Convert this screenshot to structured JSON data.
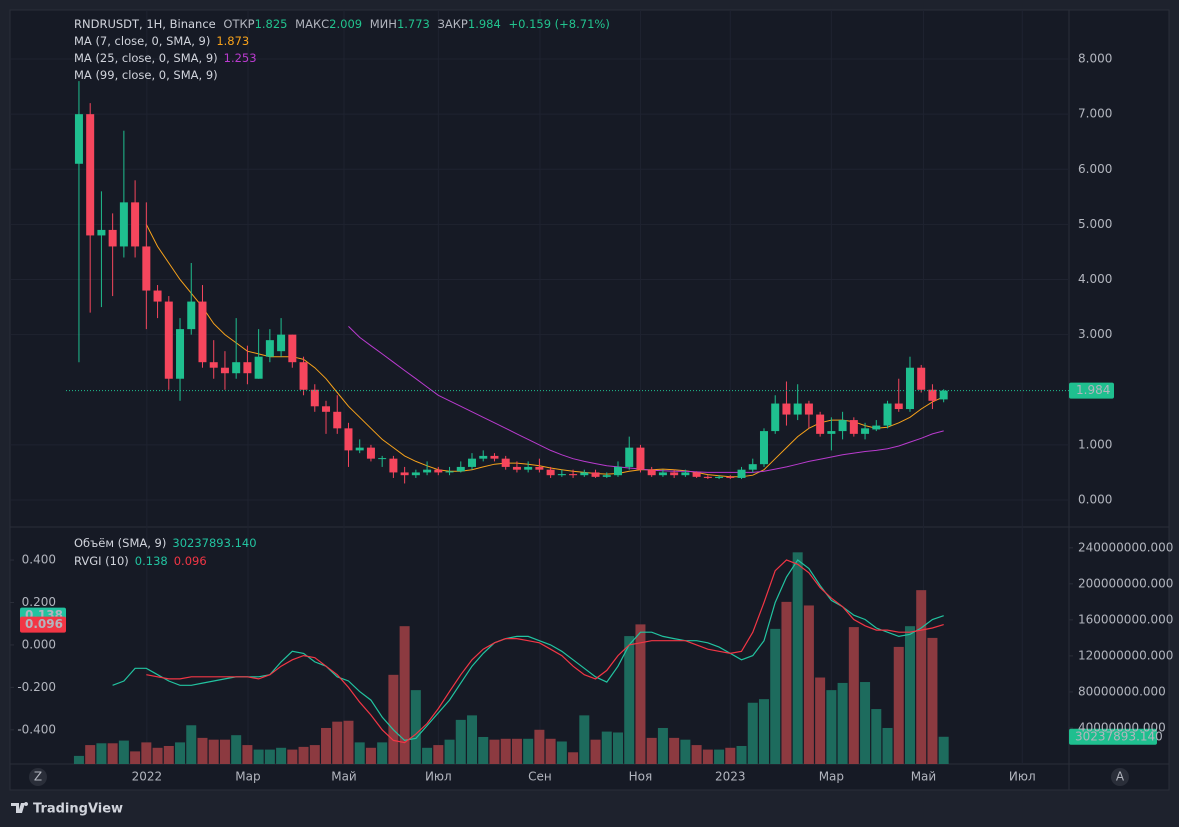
{
  "chart_data": {
    "type": "candlestick",
    "symbol": "RNDRUSDT, 1H, Binance",
    "ohlc_labels": {
      "open": "ОТКР",
      "high": "МАКС",
      "low": "МИН",
      "close": "ЗАКР"
    },
    "change": "+0.159 (+8.71%)",
    "up_color": "#1fbf8f",
    "down_color": "#f6465d",
    "open": [
      6.1,
      7.0,
      4.8,
      4.9,
      4.6,
      5.4,
      4.6,
      3.8,
      3.6,
      2.2,
      3.1,
      3.6,
      2.5,
      2.4,
      2.3,
      2.5,
      2.2,
      2.6,
      2.7,
      3.0,
      2.5,
      2.0,
      1.7,
      1.6,
      1.3,
      0.9,
      0.95,
      0.75,
      0.75,
      0.5,
      0.45,
      0.5,
      0.55,
      0.5,
      0.52,
      0.6,
      0.75,
      0.8,
      0.75,
      0.6,
      0.55,
      0.6,
      0.55,
      0.45,
      0.47,
      0.45,
      0.5,
      0.42,
      0.45,
      0.6,
      0.95,
      0.55,
      0.45,
      0.5,
      0.45,
      0.5,
      0.42,
      0.4,
      0.42,
      0.4,
      0.55,
      0.65,
      1.25,
      1.75,
      1.55,
      1.75,
      1.55,
      1.2,
      1.25,
      1.45,
      1.2,
      1.28,
      1.35,
      1.75,
      1.65,
      2.4,
      2.0,
      1.825
    ],
    "high": [
      7.6,
      7.2,
      5.6,
      5.2,
      6.7,
      5.8,
      5.4,
      3.9,
      3.7,
      3.3,
      4.3,
      3.9,
      2.9,
      2.7,
      3.3,
      2.8,
      3.1,
      3.1,
      3.3,
      3.0,
      2.6,
      2.1,
      1.8,
      1.9,
      1.4,
      1.1,
      1.0,
      0.8,
      0.8,
      0.6,
      0.55,
      0.7,
      0.6,
      0.6,
      0.7,
      0.85,
      0.9,
      0.85,
      0.8,
      0.7,
      0.7,
      0.75,
      0.6,
      0.55,
      0.55,
      0.55,
      0.55,
      0.5,
      0.7,
      1.15,
      1.0,
      0.6,
      0.55,
      0.55,
      0.55,
      0.52,
      0.45,
      0.45,
      0.45,
      0.6,
      0.75,
      1.3,
      1.9,
      2.15,
      2.1,
      1.8,
      1.6,
      1.5,
      1.6,
      1.5,
      1.4,
      1.45,
      1.8,
      2.2,
      2.6,
      2.45,
      2.1,
      2.009
    ],
    "low": [
      2.5,
      3.4,
      3.5,
      3.7,
      4.4,
      4.4,
      3.1,
      3.3,
      2.0,
      1.8,
      3.0,
      2.4,
      2.2,
      2.0,
      2.2,
      2.1,
      2.2,
      2.5,
      2.6,
      2.4,
      1.9,
      1.6,
      1.2,
      1.2,
      0.6,
      0.85,
      0.7,
      0.6,
      0.4,
      0.3,
      0.4,
      0.45,
      0.45,
      0.45,
      0.5,
      0.55,
      0.7,
      0.7,
      0.55,
      0.5,
      0.5,
      0.5,
      0.4,
      0.42,
      0.4,
      0.42,
      0.4,
      0.4,
      0.42,
      0.55,
      0.5,
      0.42,
      0.42,
      0.4,
      0.42,
      0.4,
      0.38,
      0.38,
      0.38,
      0.38,
      0.5,
      0.6,
      1.2,
      1.35,
      1.45,
      1.3,
      1.15,
      0.9,
      1.1,
      1.15,
      1.1,
      1.25,
      1.3,
      1.6,
      1.6,
      1.95,
      1.65,
      1.773
    ],
    "close": [
      7.0,
      4.8,
      4.9,
      4.6,
      5.4,
      4.6,
      3.8,
      3.6,
      2.2,
      3.1,
      3.6,
      2.5,
      2.4,
      2.3,
      2.5,
      2.3,
      2.6,
      2.9,
      3.0,
      2.5,
      2.0,
      1.7,
      1.6,
      1.3,
      0.9,
      0.95,
      0.75,
      0.76,
      0.5,
      0.45,
      0.5,
      0.55,
      0.5,
      0.52,
      0.6,
      0.75,
      0.8,
      0.75,
      0.6,
      0.55,
      0.6,
      0.55,
      0.45,
      0.47,
      0.45,
      0.5,
      0.42,
      0.45,
      0.6,
      0.95,
      0.55,
      0.45,
      0.5,
      0.45,
      0.5,
      0.42,
      0.4,
      0.42,
      0.4,
      0.55,
      0.65,
      1.25,
      1.75,
      1.55,
      1.75,
      1.55,
      1.2,
      1.25,
      1.45,
      1.2,
      1.3,
      1.35,
      1.75,
      1.65,
      2.4,
      2.0,
      1.8,
      1.984
    ],
    "series": [
      {
        "name": "MA (7, close, 0, SMA, 9)",
        "color": "#f7a21b",
        "values": [
          null,
          null,
          null,
          null,
          null,
          null,
          5.0,
          4.6,
          4.3,
          4.0,
          3.75,
          3.5,
          3.2,
          3.0,
          2.85,
          2.7,
          2.65,
          2.6,
          2.6,
          2.6,
          2.55,
          2.4,
          2.2,
          1.95,
          1.7,
          1.5,
          1.3,
          1.1,
          0.95,
          0.8,
          0.7,
          0.62,
          0.55,
          0.52,
          0.52,
          0.55,
          0.6,
          0.65,
          0.67,
          0.67,
          0.65,
          0.62,
          0.58,
          0.55,
          0.52,
          0.5,
          0.48,
          0.47,
          0.48,
          0.52,
          0.55,
          0.55,
          0.56,
          0.55,
          0.53,
          0.5,
          0.46,
          0.44,
          0.42,
          0.42,
          0.45,
          0.55,
          0.75,
          0.95,
          1.15,
          1.3,
          1.4,
          1.45,
          1.45,
          1.42,
          1.35,
          1.3,
          1.32,
          1.4,
          1.5,
          1.65,
          1.78,
          1.873
        ]
      },
      {
        "name": "MA (25, close, 0, SMA, 9)",
        "color": "#b93bce",
        "values": [
          null,
          null,
          null,
          null,
          null,
          null,
          null,
          null,
          null,
          null,
          null,
          null,
          null,
          null,
          null,
          null,
          null,
          null,
          null,
          null,
          null,
          null,
          null,
          null,
          3.15,
          2.95,
          2.8,
          2.65,
          2.5,
          2.35,
          2.2,
          2.05,
          1.9,
          1.8,
          1.7,
          1.6,
          1.5,
          1.4,
          1.3,
          1.2,
          1.1,
          1.0,
          0.9,
          0.82,
          0.75,
          0.7,
          0.66,
          0.62,
          0.6,
          0.58,
          0.56,
          0.54,
          0.53,
          0.52,
          0.52,
          0.51,
          0.5,
          0.5,
          0.5,
          0.5,
          0.5,
          0.52,
          0.56,
          0.6,
          0.65,
          0.7,
          0.74,
          0.78,
          0.82,
          0.85,
          0.88,
          0.9,
          0.93,
          0.98,
          1.05,
          1.12,
          1.2,
          1.253
        ]
      },
      {
        "name": "MA (99, close, 0, SMA, 9)"
      }
    ],
    "xlim": [
      -6.14,
      88.16
    ],
    "xticks": [
      {
        "value": 6.05,
        "label": "2022"
      },
      {
        "value": 15.05,
        "label": "Мар"
      },
      {
        "value": 23.6,
        "label": "Май"
      },
      {
        "value": 32.0,
        "label": "Июл"
      },
      {
        "value": 41.05,
        "label": "Сен"
      },
      {
        "value": 50.0,
        "label": "Ноя"
      },
      {
        "value": 58.0,
        "label": "2023"
      },
      {
        "value": 67.0,
        "label": "Мар"
      },
      {
        "value": 75.2,
        "label": "Май"
      },
      {
        "value": 84.0,
        "label": "Июл"
      }
    ],
    "ylim": [
      -0.49,
      8.89
    ],
    "yticks": [
      {
        "value": 0,
        "label": "0.000"
      },
      {
        "value": 1,
        "label": "1.000"
      },
      {
        "value": 3,
        "label": "3.000"
      },
      {
        "value": 4,
        "label": "4.000"
      },
      {
        "value": 5,
        "label": "5.000"
      },
      {
        "value": 6,
        "label": "6.000"
      },
      {
        "value": 7,
        "label": "7.000"
      },
      {
        "value": 8,
        "label": "8.000"
      }
    ],
    "grid": true,
    "volume": {
      "name": "Объём (SMA, 9)",
      "last_label": "30237893.140",
      "up_color": "#1d6b5d",
      "down_color": "#8c3a40",
      "values": [
        9000000,
        21000000,
        23000000,
        23000000,
        26000000,
        14000000,
        24000000,
        18000000,
        20000000,
        24000000,
        43000000,
        29000000,
        27000000,
        27000000,
        32000000,
        21000000,
        16000000,
        16000000,
        18000000,
        16000000,
        19000000,
        21000000,
        40000000,
        47000000,
        48000000,
        24000000,
        18000000,
        24000000,
        99000000,
        153000000,
        82000000,
        18000000,
        21000000,
        27000000,
        49000000,
        54000000,
        30000000,
        27000000,
        28000000,
        28000000,
        28000000,
        38000000,
        28000000,
        25000000,
        13000000,
        54000000,
        27000000,
        36000000,
        35000000,
        142000000,
        155000000,
        29000000,
        40000000,
        29000000,
        27000000,
        21000000,
        16000000,
        16000000,
        18000000,
        20000000,
        68000000,
        72000000,
        150000000,
        180000000,
        235000000,
        176000000,
        96000000,
        82000000,
        90000000,
        152000000,
        91000000,
        61000000,
        40000000,
        130000000,
        153000000,
        193000000,
        140000000,
        30237893.14
      ],
      "ylim": [
        0,
        262000000
      ],
      "yticks": [
        {
          "value": 40000000,
          "label": "40000000.000"
        },
        {
          "value": 80000000,
          "label": "80000000.000"
        },
        {
          "value": 120000000,
          "label": "120000000.000"
        },
        {
          "value": 160000000,
          "label": "160000000.000"
        },
        {
          "value": 200000000,
          "label": "200000000.000"
        },
        {
          "value": 240000000,
          "label": "240000000.000"
        }
      ]
    },
    "rvgi": {
      "name": "RVGI (10)",
      "ylim": [
        -0.561,
        0.551
      ],
      "yticks": [
        {
          "value": -0.4,
          "label": "-0.400"
        },
        {
          "value": -0.2,
          "label": "-0.200"
        },
        {
          "value": 0,
          "label": "0.000"
        },
        {
          "value": 0.2,
          "label": "0.200"
        },
        {
          "value": 0.4,
          "label": "0.400"
        }
      ],
      "series": [
        {
          "color": "#22c3a0",
          "values": [
            null,
            null,
            null,
            -0.19,
            -0.17,
            -0.11,
            -0.11,
            -0.14,
            -0.17,
            -0.19,
            -0.19,
            -0.18,
            -0.17,
            -0.16,
            -0.15,
            -0.15,
            -0.15,
            -0.14,
            -0.08,
            -0.03,
            -0.04,
            -0.08,
            -0.1,
            -0.15,
            -0.17,
            -0.22,
            -0.26,
            -0.34,
            -0.4,
            -0.45,
            -0.44,
            -0.38,
            -0.32,
            -0.26,
            -0.18,
            -0.1,
            -0.04,
            0.01,
            0.03,
            0.04,
            0.04,
            0.02,
            0,
            -0.03,
            -0.07,
            -0.11,
            -0.15,
            -0.175,
            -0.1,
            0,
            0.06,
            0.06,
            0.04,
            0.03,
            0.02,
            0.02,
            0.01,
            -0.01,
            -0.04,
            -0.07,
            -0.05,
            0.02,
            0.2,
            0.32,
            0.4,
            0.36,
            0.28,
            0.21,
            0.18,
            0.14,
            0.12,
            0.08,
            0.06,
            0.04,
            0.05,
            0.08,
            0.12,
            0.138
          ]
        },
        {
          "color": "#f23645",
          "values": [
            null,
            null,
            null,
            null,
            null,
            null,
            -0.14,
            -0.15,
            -0.16,
            -0.16,
            -0.15,
            -0.15,
            -0.15,
            -0.15,
            -0.15,
            -0.15,
            -0.16,
            -0.14,
            -0.1,
            -0.07,
            -0.05,
            -0.06,
            -0.1,
            -0.14,
            -0.2,
            -0.27,
            -0.33,
            -0.4,
            -0.45,
            -0.46,
            -0.42,
            -0.37,
            -0.3,
            -0.22,
            -0.14,
            -0.07,
            -0.02,
            0.01,
            0.03,
            0.03,
            0.02,
            0.01,
            -0.02,
            -0.05,
            -0.1,
            -0.14,
            -0.16,
            -0.12,
            -0.05,
            0,
            0.01,
            0.02,
            0.02,
            0.02,
            0.02,
            0,
            -0.02,
            -0.03,
            -0.04,
            -0.03,
            0.06,
            0.2,
            0.35,
            0.4,
            0.38,
            0.34,
            0.27,
            0.22,
            0.18,
            0.12,
            0.09,
            0.07,
            0.07,
            0.06,
            0.06,
            0.07,
            0.08,
            0.096
          ]
        }
      ]
    }
  },
  "ui": {
    "scale_left": "Z",
    "scale_right": "A",
    "brand": "TradingView"
  }
}
